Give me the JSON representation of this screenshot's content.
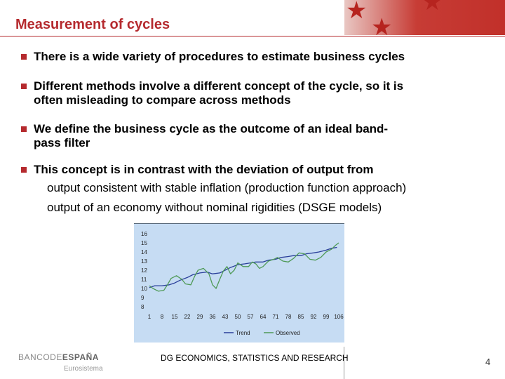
{
  "slide": {
    "title": "Measurement of cycles",
    "bullets": [
      {
        "lines": [
          "There is a wide variety of procedures to estimate business cycles"
        ]
      },
      {
        "lines": [
          "Different methods involve a different concept of the cycle, so it is",
          "often misleading to compare across methods"
        ]
      },
      {
        "lines": [
          "We define the business cycle as the outcome of an ideal band-",
          "pass filter"
        ]
      },
      {
        "lines": [
          "This concept is in contrast with the deviation of output from"
        ]
      }
    ],
    "sub_lines": [
      "output consistent with stable inflation (production function approach)",
      "output of an economy without nominal rigidities (DSGE models)"
    ],
    "accent_color": "#b52a2e"
  },
  "chart_data": {
    "type": "line",
    "y_ticks": [
      "16",
      "15",
      "14",
      "13",
      "12",
      "11",
      "10",
      "9",
      "8"
    ],
    "ylim": [
      8,
      16
    ],
    "x_ticks": [
      "1",
      "8",
      "15",
      "22",
      "29",
      "36",
      "43",
      "50",
      "57",
      "64",
      "71",
      "78",
      "85",
      "92",
      "99",
      "106"
    ],
    "xlim": [
      1,
      106
    ],
    "series": [
      {
        "name": "Trend",
        "color": "#2a3f9a",
        "x": [
          1,
          4,
          8,
          12,
          15,
          18,
          22,
          25,
          29,
          33,
          36,
          40,
          43,
          46,
          50,
          54,
          57,
          60,
          64,
          67,
          71,
          74,
          78,
          81,
          85,
          88,
          92,
          95,
          99,
          102,
          105
        ],
        "y": [
          10.1,
          10.3,
          10.3,
          10.4,
          10.6,
          10.9,
          11.2,
          11.5,
          11.7,
          11.8,
          11.6,
          11.7,
          12.0,
          12.3,
          12.6,
          12.7,
          12.8,
          12.9,
          12.9,
          13.1,
          13.2,
          13.4,
          13.5,
          13.6,
          13.6,
          13.8,
          13.9,
          14.0,
          14.2,
          14.4,
          14.5
        ]
      },
      {
        "name": "Observed",
        "color": "#4f9a57",
        "x": [
          1,
          3,
          6,
          9,
          11,
          13,
          16,
          19,
          21,
          24,
          26,
          28,
          31,
          34,
          36,
          38,
          40,
          42,
          44,
          46,
          48,
          50,
          53,
          56,
          58,
          60,
          62,
          64,
          67,
          70,
          72,
          75,
          78,
          81,
          84,
          87,
          90,
          93,
          96,
          99,
          102,
          104,
          106
        ],
        "y": [
          10.3,
          10.0,
          9.7,
          9.8,
          10.4,
          11.1,
          11.4,
          11.0,
          10.5,
          10.4,
          11.3,
          12.0,
          12.2,
          11.6,
          10.4,
          10.0,
          11.0,
          11.9,
          12.4,
          11.6,
          12.0,
          12.8,
          12.4,
          12.4,
          12.9,
          12.7,
          12.2,
          12.4,
          13.0,
          13.2,
          13.4,
          13.0,
          12.9,
          13.3,
          13.9,
          13.8,
          13.2,
          13.1,
          13.4,
          14.0,
          14.3,
          14.7,
          15.0
        ]
      }
    ],
    "legend_labels": [
      "Trend",
      "Observed"
    ],
    "legend": "bottom"
  },
  "footer": {
    "logo_light": "BANCODE",
    "logo_bold": "ESPAÑA",
    "logo_sub": "Eurosistema",
    "center_text": "DG ECONOMICS, STATISTICS AND RESEARCH",
    "page_number": "4"
  }
}
